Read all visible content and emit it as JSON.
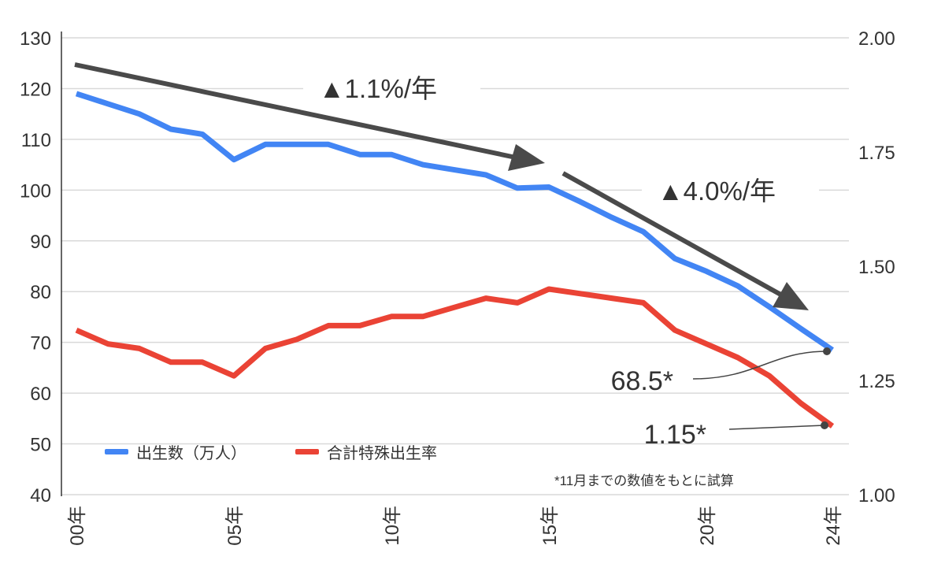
{
  "chart_data": {
    "type": "line",
    "x_ticks": [
      "00年",
      "05年",
      "10年",
      "15年",
      "20年",
      "24年"
    ],
    "x_tick_years": [
      0,
      5,
      10,
      15,
      20,
      24
    ],
    "x": [
      0,
      1,
      2,
      3,
      4,
      5,
      6,
      7,
      8,
      9,
      10,
      11,
      12,
      13,
      14,
      15,
      16,
      17,
      18,
      19,
      20,
      21,
      22,
      23,
      24
    ],
    "left_axis": {
      "ylim": [
        40,
        130
      ],
      "ticks": [
        "40",
        "50",
        "60",
        "70",
        "80",
        "90",
        "100",
        "110",
        "120",
        "130"
      ]
    },
    "right_axis": {
      "ylim": [
        1.0,
        2.0
      ],
      "ticks": [
        "1.00",
        "1.25",
        "1.50",
        "1.75",
        "2.00"
      ]
    },
    "series": [
      {
        "name": "出生数（万人）",
        "axis": "left",
        "color": "#4285f4",
        "values": [
          119,
          117,
          115,
          112,
          111,
          106,
          109,
          109,
          109,
          107,
          107,
          105,
          104,
          103,
          100.4,
          100.6,
          97.7,
          94.6,
          91.8,
          86.5,
          84,
          81.1,
          77,
          72.7,
          68.5
        ]
      },
      {
        "name": "合計特殊出生率",
        "axis": "right",
        "color": "#ea4335",
        "values": [
          1.36,
          1.33,
          1.32,
          1.29,
          1.29,
          1.26,
          1.32,
          1.34,
          1.37,
          1.37,
          1.39,
          1.39,
          1.41,
          1.43,
          1.42,
          1.45,
          1.44,
          1.43,
          1.42,
          1.36,
          1.33,
          1.3,
          1.26,
          1.2,
          1.15
        ]
      }
    ],
    "annotations": {
      "trend1": "▲1.1%/年",
      "trend2": "▲4.0%/年",
      "label_births": "68.5*",
      "label_rate": "1.15*",
      "footnote": "*11月までの数値をもとに試算"
    },
    "legend_placement": "bottom-left",
    "grid": true,
    "arrow_color": "#4a4a4a"
  }
}
